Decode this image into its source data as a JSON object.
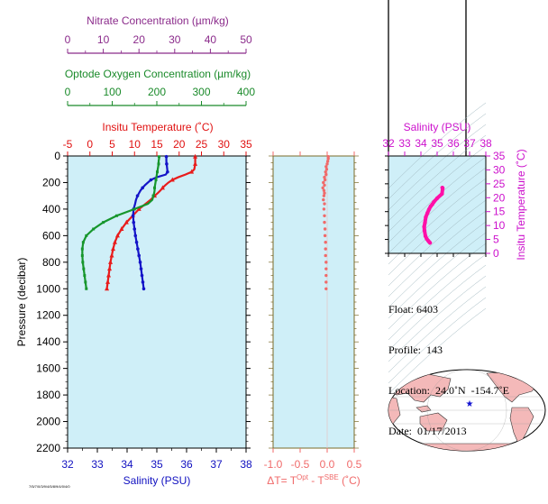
{
  "chart_data": [
    {
      "type": "line",
      "panel": "main-profile",
      "ylabel": "Pressure (decibar)",
      "yticks": [
        "0",
        "200",
        "400",
        "600",
        "800",
        "1000",
        "1200",
        "1400",
        "1600",
        "1800",
        "2000",
        "2200"
      ],
      "ylim": [
        2200,
        0
      ],
      "axes": {
        "nitrate": {
          "label": "Nitrate Concentration (µm/kg)",
          "ticks": [
            "0",
            "10",
            "20",
            "30",
            "40",
            "50"
          ],
          "range": [
            0,
            50
          ],
          "color": "#8B2B8B"
        },
        "oxygen": {
          "label": "Optode Oxygen Concentration (µm/kg)",
          "ticks": [
            "0",
            "100",
            "200",
            "300",
            "400"
          ],
          "range": [
            0,
            400
          ],
          "color": "#1A8A2A"
        },
        "temperature": {
          "label": "Insitu Temperature (˚C)",
          "ticks": [
            "-5",
            "0",
            "5",
            "10",
            "15",
            "20",
            "25",
            "30",
            "35"
          ],
          "range": [
            -5,
            35
          ],
          "color": "#E01010"
        },
        "salinity": {
          "label": "Salinity (PSU)",
          "ticks": [
            "32",
            "33",
            "34",
            "35",
            "36",
            "37",
            "38"
          ],
          "range": [
            32,
            38
          ],
          "color": "#1010C0"
        }
      },
      "series": [
        {
          "axis": "temperature",
          "color": "#E81C1C",
          "pressure": [
            5,
            20,
            40,
            60,
            80,
            100,
            120,
            140,
            160,
            180,
            200,
            220,
            240,
            260,
            280,
            300,
            330,
            360,
            400,
            450,
            500,
            550,
            600,
            650,
            700,
            750,
            800,
            850,
            900,
            950,
            1000
          ],
          "values": [
            23.6,
            23.6,
            23.6,
            23.6,
            23.5,
            23.4,
            22.8,
            21.4,
            19.8,
            18.5,
            17.6,
            16.9,
            16.3,
            15.8,
            15.2,
            14.5,
            13.6,
            12.5,
            11.0,
            9.6,
            8.2,
            7.1,
            6.2,
            5.6,
            5.2,
            4.9,
            4.6,
            4.4,
            4.2,
            4.0,
            3.8
          ]
        },
        {
          "axis": "salinity",
          "color": "#1414C8",
          "pressure": [
            5,
            20,
            40,
            60,
            80,
            100,
            120,
            140,
            160,
            180,
            200,
            220,
            240,
            260,
            280,
            300,
            330,
            360,
            400,
            450,
            500,
            550,
            600,
            650,
            700,
            750,
            800,
            850,
            900,
            950,
            1000
          ],
          "values": [
            35.32,
            35.32,
            35.32,
            35.33,
            35.34,
            35.35,
            35.36,
            35.3,
            35.0,
            34.8,
            34.7,
            34.6,
            34.52,
            34.45,
            34.4,
            34.35,
            34.3,
            34.27,
            34.22,
            34.2,
            34.22,
            34.25,
            34.28,
            34.32,
            34.36,
            34.4,
            34.44,
            34.47,
            34.5,
            34.53,
            34.56
          ]
        },
        {
          "axis": "oxygen",
          "color": "#16962C",
          "pressure": [
            5,
            20,
            40,
            60,
            80,
            100,
            120,
            140,
            160,
            180,
            200,
            220,
            240,
            260,
            280,
            300,
            330,
            360,
            400,
            450,
            500,
            550,
            600,
            650,
            700,
            750,
            800,
            850,
            900,
            950,
            1000
          ],
          "values": [
            205,
            205,
            204,
            204,
            203,
            202,
            201,
            200,
            199,
            198,
            197,
            196,
            195,
            195,
            194,
            192,
            190,
            180,
            150,
            110,
            80,
            58,
            42,
            35,
            33,
            33,
            34,
            36,
            38,
            40,
            42
          ]
        }
      ]
    },
    {
      "type": "scatter",
      "panel": "delta-t",
      "xlabel": "ΔT= TOpt - TSBE (˚C)",
      "xlabel_parts": {
        "prefix": "ΔT= T",
        "sup1": "Opt",
        "mid": " - T",
        "sup2": "SBE",
        "suffix": " (˚C)"
      },
      "xticks": [
        "-1.0",
        "-0.5",
        "0.0",
        "0.5"
      ],
      "xlim": [
        -1.0,
        0.5
      ],
      "ylim": [
        2200,
        0
      ],
      "color": "#F06A6A",
      "pressure": [
        5,
        20,
        40,
        60,
        80,
        100,
        120,
        140,
        160,
        180,
        200,
        220,
        240,
        260,
        280,
        300,
        330,
        360,
        400,
        450,
        500,
        550,
        600,
        650,
        700,
        750,
        800,
        850,
        900,
        950,
        1000
      ],
      "values": [
        0.02,
        0.02,
        0.01,
        0.0,
        -0.02,
        -0.01,
        -0.03,
        -0.02,
        -0.05,
        -0.04,
        -0.07,
        -0.05,
        -0.08,
        -0.06,
        -0.05,
        -0.06,
        -0.07,
        -0.05,
        -0.06,
        -0.05,
        -0.05,
        -0.04,
        -0.04,
        -0.03,
        -0.03,
        -0.03,
        -0.02,
        -0.02,
        -0.02,
        -0.02,
        -0.02
      ]
    },
    {
      "type": "line",
      "panel": "ts-diagram",
      "xlabel": "Salinity (PSU)",
      "ylabel": "Insitu Temperature (˚C)",
      "xticks": [
        "32",
        "33",
        "34",
        "35",
        "36",
        "37",
        "38"
      ],
      "yticks": [
        "0",
        "5",
        "10",
        "15",
        "20",
        "25",
        "30",
        "35"
      ],
      "xlim": [
        32,
        38
      ],
      "ylim": [
        0,
        35
      ],
      "color": "#FF10A8",
      "salinity": [
        35.32,
        35.34,
        35.3,
        35.0,
        34.8,
        34.7,
        34.6,
        34.5,
        34.4,
        34.3,
        34.25,
        34.2,
        34.22,
        34.28,
        34.36,
        34.44,
        34.5,
        34.56
      ],
      "temperature": [
        23.6,
        23.4,
        21.4,
        19.8,
        18.5,
        17.6,
        16.9,
        15.8,
        14.5,
        13.0,
        11.0,
        9.6,
        8.2,
        6.2,
        5.2,
        4.6,
        4.2,
        3.8
      ]
    }
  ],
  "float_info": {
    "float_label": "Float:",
    "float_value": "6403",
    "profile_label": "Profile:",
    "profile_value": "143",
    "location_label": "Location:",
    "location_value": "24.0˚N  -154.7˚E",
    "date_label": "Date:",
    "date_value": "01/17/2013"
  },
  "map": {
    "marker": "★",
    "ocean_color": "#FFFFFF",
    "land_color": "#F4B9B9",
    "marker_color": "#1010D0"
  },
  "footer_tiny_text": "7/5/7/0/3/9/4/5/8/9/4/0/4/0"
}
